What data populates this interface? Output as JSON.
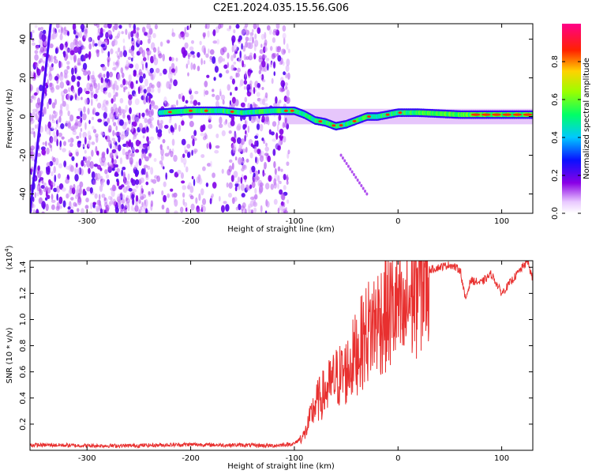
{
  "title": "C2E1.2024.035.15.56.G06",
  "chart_data": [
    {
      "type": "heatmap",
      "xlabel": "Height of straight line (km)",
      "ylabel": "Frequency (Hz)",
      "xlim": [
        -355,
        130
      ],
      "ylim": [
        -50,
        48
      ],
      "xticks": [
        -300,
        -200,
        -100,
        0,
        100
      ],
      "yticks": [
        -40,
        -20,
        0,
        20,
        40
      ],
      "colorbar": {
        "label": "Normalized spectral amplitude",
        "range": [
          0,
          1
        ],
        "ticks": [
          "0.0",
          "0.2",
          "0.4",
          "0.6",
          "0.8"
        ],
        "tick_values": [
          0,
          0.2,
          0.4,
          0.6,
          0.8
        ],
        "colormap": "rainbow (white-purple-blue-cyan-green-yellow-red-magenta)"
      },
      "ridge": {
        "description": "main spectral ridge near 0 Hz",
        "x": [
          -230,
          -200,
          -170,
          -150,
          -120,
          -100,
          -90,
          -80,
          -70,
          -60,
          -50,
          -40,
          -30,
          -20,
          -10,
          0,
          20,
          60,
          100,
          130
        ],
        "y": [
          2,
          3,
          3,
          2,
          3,
          3,
          1,
          -2,
          -3,
          -5,
          -4,
          -2,
          0,
          0,
          1,
          2,
          2,
          1,
          1,
          1
        ]
      },
      "diagonal_track": {
        "x": [
          -355,
          -335
        ],
        "y": [
          -50,
          48
        ]
      },
      "faint_branch": {
        "x": [
          -55,
          -30
        ],
        "y": [
          -20,
          -40
        ]
      }
    },
    {
      "type": "line",
      "xlabel": "Height of straight line (km)",
      "ylabel": "SNR (10 * v/v)",
      "exponent_label": "(x10",
      "exponent_power": "4",
      "exponent_close": ")",
      "xlim": [
        -355,
        130
      ],
      "ylim": [
        0,
        1.45
      ],
      "y_scale_factor": 10000,
      "xticks": [
        -300,
        -200,
        -100,
        0,
        100
      ],
      "yticks": [
        0.2,
        0.4,
        0.6,
        0.8,
        1.0,
        1.2,
        1.4
      ],
      "ytick_labels": [
        "0.2",
        "0.4",
        "0.6",
        "0.8",
        "1.0",
        "1.2",
        "1.4"
      ],
      "color": "#e8302f",
      "series": [
        {
          "x": [
            -355,
            -330,
            -300,
            -260,
            -230,
            -200,
            -170,
            -150,
            -120,
            -100,
            -90,
            -80,
            -70,
            -60,
            -50,
            -40,
            -30,
            -20,
            -10,
            0,
            5,
            10,
            15,
            20,
            30,
            40,
            50,
            60,
            65,
            70,
            80,
            90,
            100,
            110,
            120,
            125,
            130
          ],
          "y": [
            0.04,
            0.04,
            0.035,
            0.035,
            0.04,
            0.045,
            0.04,
            0.04,
            0.035,
            0.05,
            0.12,
            0.35,
            0.45,
            0.55,
            0.6,
            0.75,
            0.9,
            1.0,
            1.05,
            1.1,
            0.95,
            1.15,
            1.2,
            1.3,
            1.38,
            1.4,
            1.42,
            1.38,
            1.15,
            1.3,
            1.28,
            1.35,
            1.2,
            1.3,
            1.4,
            1.45,
            1.3
          ]
        }
      ]
    }
  ]
}
